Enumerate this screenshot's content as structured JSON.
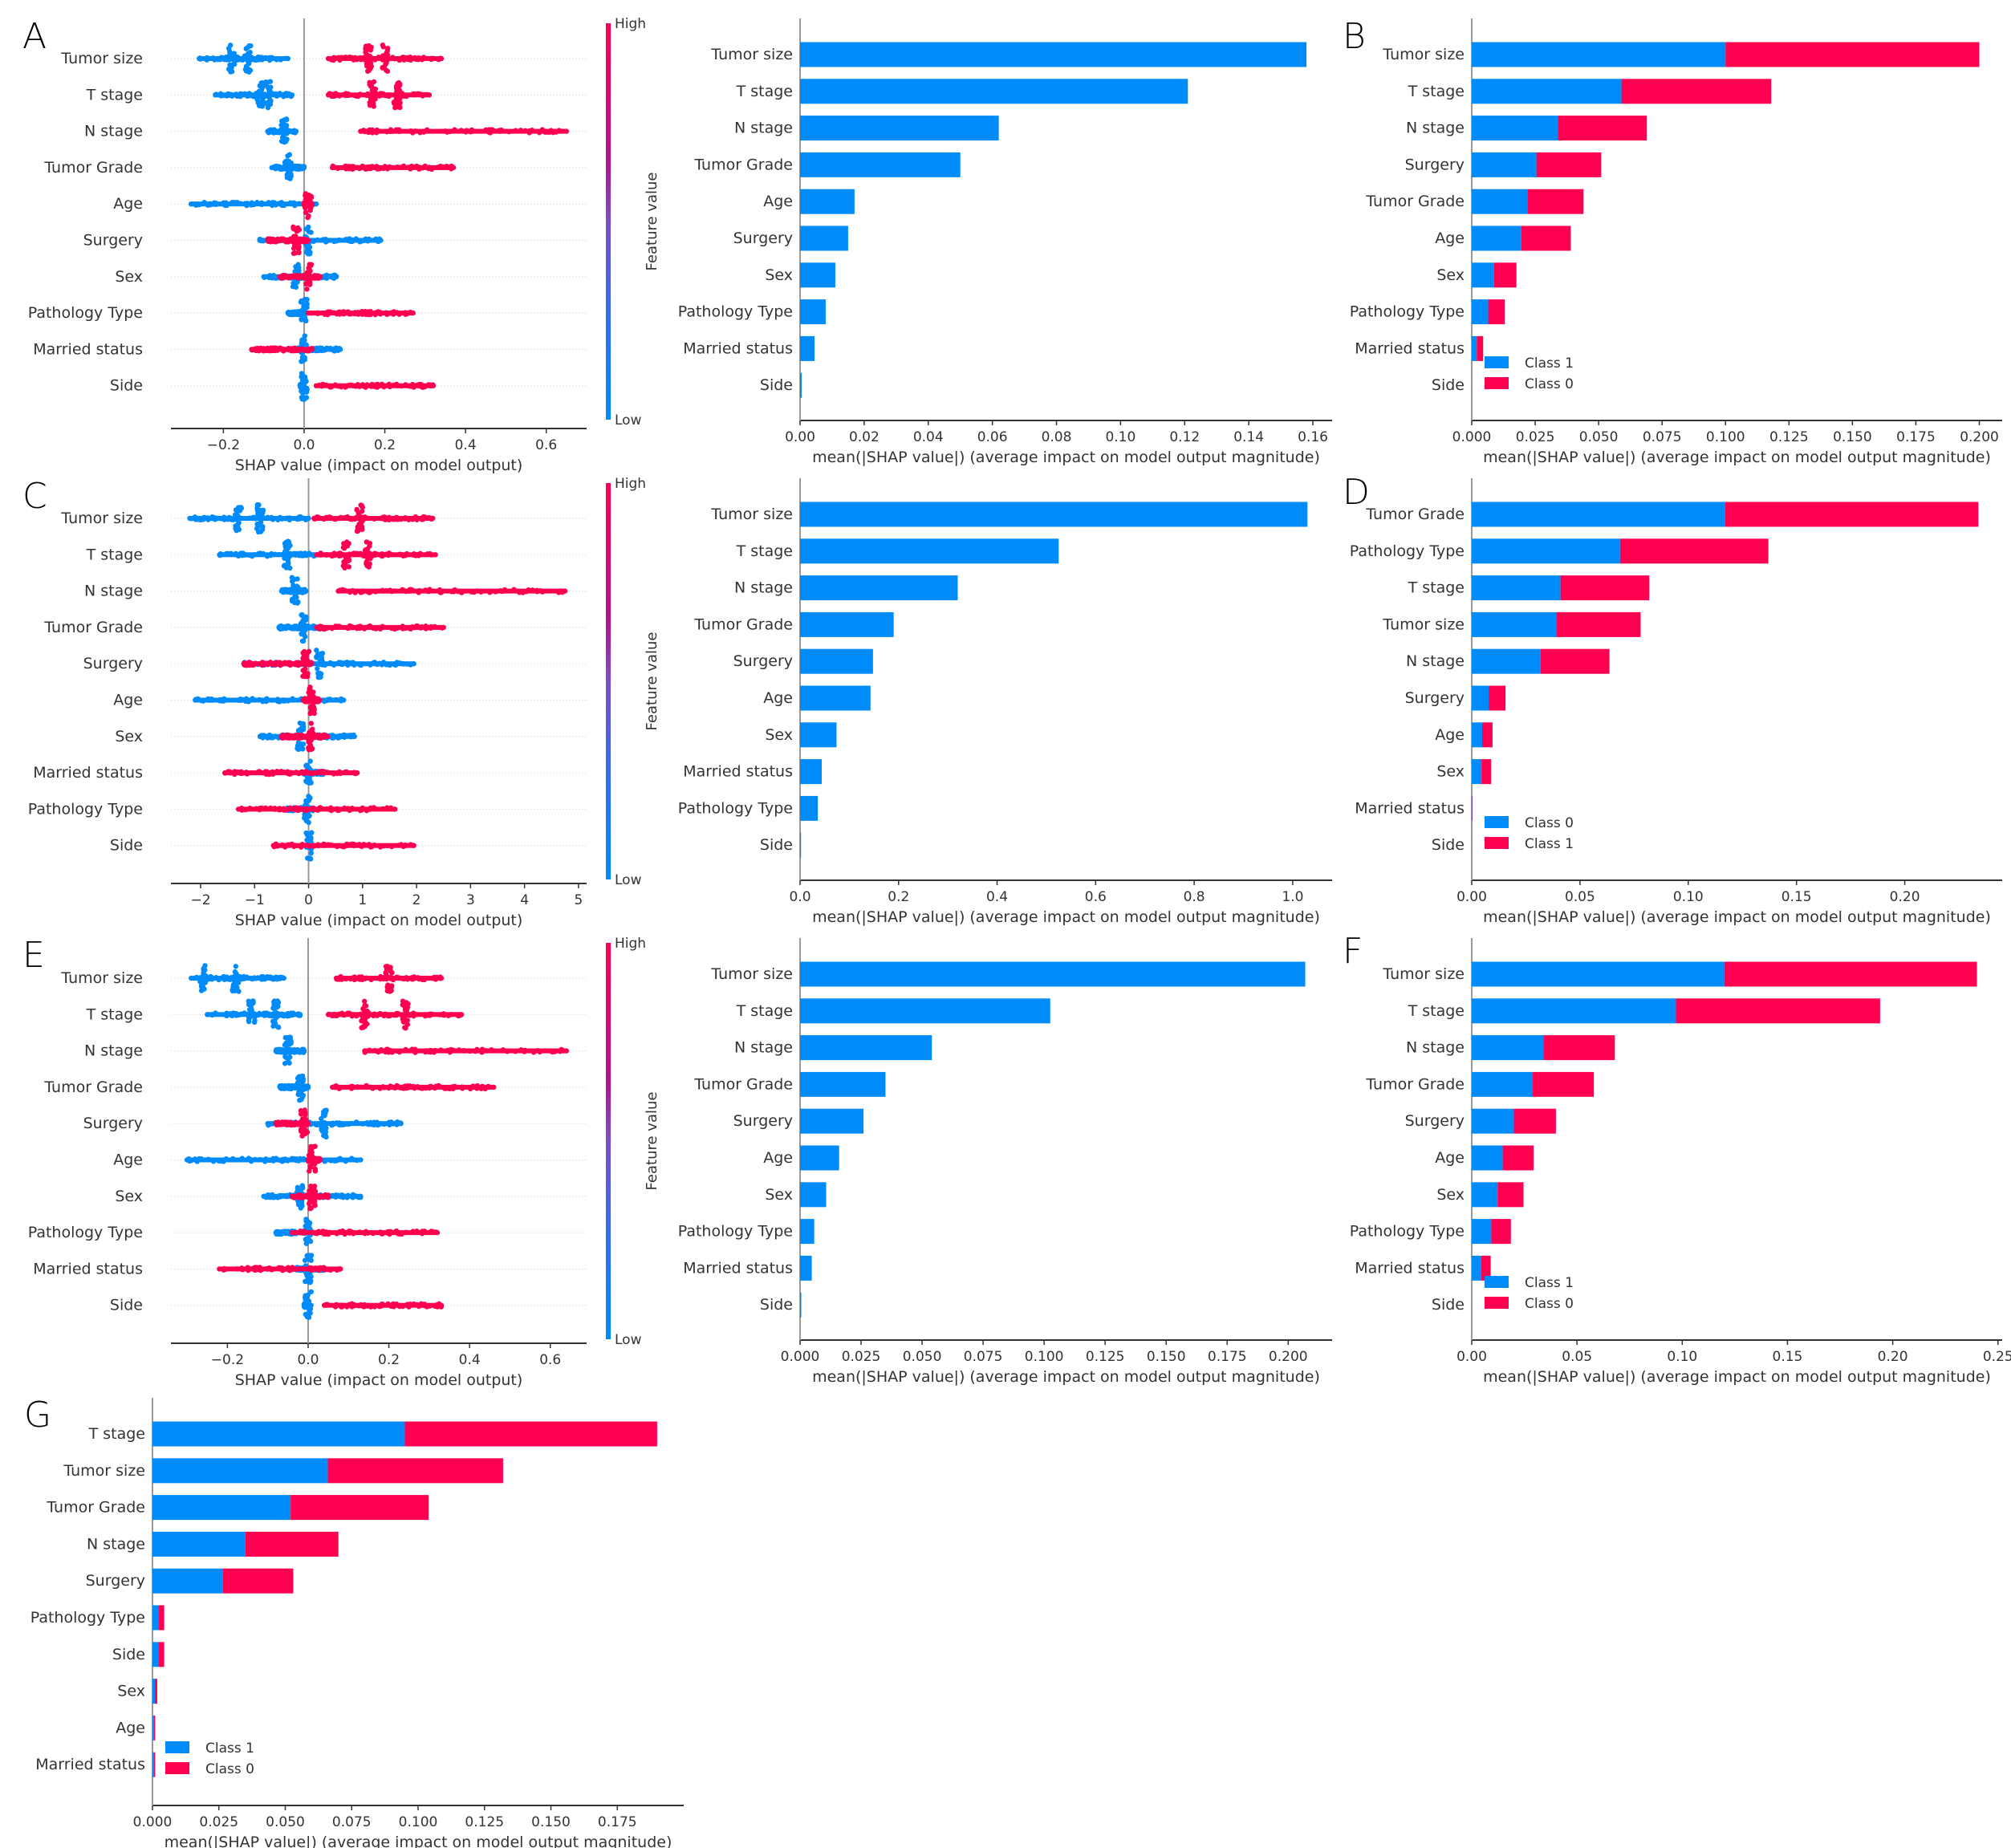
{
  "colors": {
    "blue": "#008bfb",
    "red": "#ff0051",
    "axis": "#333333",
    "zero_line": "#999999"
  },
  "chart_data": [
    {
      "id": "A",
      "type": "scatter",
      "kind": "beeswarm",
      "panel_label": "A",
      "xlabel": "SHAP value (impact on model output)",
      "xlim": [
        -0.33,
        0.7
      ],
      "xticks": [
        -0.2,
        0.0,
        0.2,
        0.4,
        0.6
      ],
      "xtick_labels": [
        "−0.2",
        "0.0",
        "0.2",
        "0.4",
        "0.6"
      ],
      "colorbar": {
        "label": "Feature value",
        "high": "High",
        "low": "Low"
      },
      "features": [
        {
          "name": "Tumor size",
          "low": [
            -0.26,
            -0.04
          ],
          "low_peaks": [
            -0.18,
            -0.14
          ],
          "high": [
            0.06,
            0.34
          ],
          "high_peaks": [
            0.16,
            0.2
          ]
        },
        {
          "name": "T stage",
          "low": [
            -0.22,
            -0.03
          ],
          "low_peaks": [
            -0.11,
            -0.09
          ],
          "high": [
            0.06,
            0.31
          ],
          "high_peaks": [
            0.17,
            0.23
          ]
        },
        {
          "name": "N stage",
          "low": [
            -0.09,
            -0.02
          ],
          "low_peaks": [
            -0.05
          ],
          "high": [
            0.14,
            0.65
          ],
          "high_peaks": []
        },
        {
          "name": "Tumor Grade",
          "low": [
            -0.08,
            0.0
          ],
          "low_peaks": [
            -0.04
          ],
          "high": [
            0.07,
            0.37
          ],
          "high_peaks": []
        },
        {
          "name": "Age",
          "low": [
            -0.28,
            0.03
          ],
          "low_peaks": [],
          "high": [
            0.0,
            0.02
          ],
          "high_peaks": [
            0.01
          ]
        },
        {
          "name": "Surgery",
          "low": [
            -0.11,
            0.19
          ],
          "low_peaks": [
            0.01
          ],
          "high": [
            -0.09,
            0.01
          ],
          "high_peaks": [
            -0.02
          ]
        },
        {
          "name": "Sex",
          "low": [
            -0.1,
            0.08
          ],
          "low_peaks": [
            -0.02
          ],
          "high": [
            -0.06,
            0.04
          ],
          "high_peaks": [
            0.01
          ]
        },
        {
          "name": "Pathology Type",
          "low": [
            -0.04,
            0.0
          ],
          "low_peaks": [
            0.0
          ],
          "high": [
            0.01,
            0.27
          ],
          "high_peaks": []
        },
        {
          "name": "Married status",
          "low": [
            -0.02,
            0.09
          ],
          "low_peaks": [
            0.0
          ],
          "high": [
            -0.13,
            0.02
          ],
          "high_peaks": []
        },
        {
          "name": "Side",
          "low": [
            -0.01,
            0.0
          ],
          "low_peaks": [
            0.0
          ],
          "high": [
            0.03,
            0.32
          ],
          "high_peaks": []
        }
      ]
    },
    {
      "id": "A2",
      "type": "bar",
      "xlabel": "mean(|SHAP value|) (average impact on model output magnitude)",
      "xlim": [
        0,
        0.166
      ],
      "xticks": [
        0,
        0.02,
        0.04,
        0.06,
        0.08,
        0.1,
        0.12,
        0.14,
        0.16
      ],
      "xtick_labels": [
        "0.00",
        "0.02",
        "0.04",
        "0.06",
        "0.08",
        "0.10",
        "0.12",
        "0.14",
        "0.16"
      ],
      "categories": [
        "Tumor size",
        "T stage",
        "N stage",
        "Tumor Grade",
        "Age",
        "Surgery",
        "Sex",
        "Pathology Type",
        "Married status",
        "Side"
      ],
      "values": [
        0.158,
        0.121,
        0.062,
        0.05,
        0.017,
        0.015,
        0.011,
        0.008,
        0.0045,
        0.0005
      ]
    },
    {
      "id": "B",
      "type": "bar",
      "stacked": true,
      "panel_label": "B",
      "xlabel": "mean(|SHAP value|) (average impact on model output magnitude)",
      "xlim": [
        0,
        0.209
      ],
      "xticks": [
        0,
        0.025,
        0.05,
        0.075,
        0.1,
        0.125,
        0.15,
        0.175,
        0.2
      ],
      "xtick_labels": [
        "0.000",
        "0.025",
        "0.050",
        "0.075",
        "0.100",
        "0.125",
        "0.150",
        "0.175",
        "0.200"
      ],
      "categories": [
        "Tumor size",
        "T stage",
        "N stage",
        "Surgery",
        "Tumor Grade",
        "Age",
        "Sex",
        "Pathology Type",
        "Married status",
        "Side"
      ],
      "series": [
        {
          "name": "Class 1",
          "color": "blue",
          "values": [
            0.1,
            0.059,
            0.034,
            0.0255,
            0.022,
            0.0195,
            0.0088,
            0.0065,
            0.002,
            0.0
          ]
        },
        {
          "name": "Class 0",
          "color": "red",
          "values": [
            0.1,
            0.059,
            0.035,
            0.0255,
            0.022,
            0.0195,
            0.0088,
            0.0065,
            0.0025,
            0.0
          ]
        }
      ],
      "legend": {
        "placement": "lower-left",
        "entries": [
          "Class 1",
          "Class 0"
        ]
      }
    },
    {
      "id": "C",
      "type": "scatter",
      "kind": "beeswarm",
      "panel_label": "C",
      "xlabel": "SHAP value (impact on model output)",
      "xlim": [
        -2.55,
        5.15
      ],
      "xticks": [
        -2,
        -1,
        0,
        1,
        2,
        3,
        4,
        5
      ],
      "xtick_labels": [
        "−2",
        "−1",
        "0",
        "1",
        "2",
        "3",
        "4",
        "5"
      ],
      "colorbar": {
        "label": "Feature value",
        "high": "High",
        "low": "Low"
      },
      "features": [
        {
          "name": "Tumor size",
          "low": [
            -2.2,
            0.0
          ],
          "low_peaks": [
            -1.3,
            -0.9
          ],
          "high": [
            0.1,
            2.3
          ],
          "high_peaks": [
            0.95
          ]
        },
        {
          "name": "T stage",
          "low": [
            -1.65,
            0.1
          ],
          "low_peaks": [
            -0.4
          ],
          "high": [
            0.15,
            2.35
          ],
          "high_peaks": [
            0.7,
            1.1
          ]
        },
        {
          "name": "N stage",
          "low": [
            -0.5,
            -0.05
          ],
          "low_peaks": [
            -0.25
          ],
          "high": [
            0.55,
            4.75
          ],
          "high_peaks": []
        },
        {
          "name": "Tumor Grade",
          "low": [
            -0.55,
            0.2
          ],
          "low_peaks": [
            -0.1
          ],
          "high": [
            0.15,
            2.5
          ],
          "high_peaks": []
        },
        {
          "name": "Surgery",
          "low": [
            -1.2,
            1.95
          ],
          "low_peaks": [
            0.2
          ],
          "high": [
            -1.2,
            0.05
          ],
          "high_peaks": [
            -0.05
          ]
        },
        {
          "name": "Age",
          "low": [
            -2.1,
            0.65
          ],
          "low_peaks": [],
          "high": [
            -0.1,
            0.2
          ],
          "high_peaks": [
            0.05
          ]
        },
        {
          "name": "Sex",
          "low": [
            -0.9,
            0.85
          ],
          "low_peaks": [
            -0.15
          ],
          "high": [
            -0.5,
            0.35
          ],
          "high_peaks": [
            0.05
          ]
        },
        {
          "name": "Married status",
          "low": [
            -0.1,
            0.3
          ],
          "low_peaks": [
            0.0
          ],
          "high": [
            -1.55,
            0.9
          ],
          "high_peaks": []
        },
        {
          "name": "Pathology Type",
          "low": [
            -0.4,
            0.1
          ],
          "low_peaks": [
            -0.02
          ],
          "high": [
            -1.3,
            1.6
          ],
          "high_peaks": []
        },
        {
          "name": "Side",
          "low": [
            -0.03,
            0.0
          ],
          "low_peaks": [
            0.0
          ],
          "high": [
            -0.65,
            1.95
          ],
          "high_peaks": []
        }
      ]
    },
    {
      "id": "C2",
      "type": "bar",
      "xlabel": "mean(|SHAP value|) (average impact on model output magnitude)",
      "xlim": [
        0,
        1.08
      ],
      "xticks": [
        0,
        0.2,
        0.4,
        0.6,
        0.8,
        1.0
      ],
      "xtick_labels": [
        "0.0",
        "0.2",
        "0.4",
        "0.6",
        "0.8",
        "1.0"
      ],
      "categories": [
        "Tumor size",
        "T stage",
        "N stage",
        "Tumor Grade",
        "Surgery",
        "Age",
        "Sex",
        "Married status",
        "Pathology Type",
        "Side"
      ],
      "values": [
        1.03,
        0.525,
        0.32,
        0.19,
        0.148,
        0.143,
        0.074,
        0.044,
        0.036,
        0.002
      ]
    },
    {
      "id": "D",
      "type": "bar",
      "stacked": true,
      "panel_label": "D",
      "xlabel": "mean(|SHAP value|) (average impact on model output magnitude)",
      "xlim": [
        0,
        0.245
      ],
      "xticks": [
        0,
        0.05,
        0.1,
        0.15,
        0.2
      ],
      "xtick_labels": [
        "0.00",
        "0.05",
        "0.10",
        "0.15",
        "0.20"
      ],
      "categories": [
        "Tumor Grade",
        "Pathology Type",
        "T stage",
        "Tumor size",
        "N stage",
        "Surgery",
        "Age",
        "Sex",
        "Married status",
        "Side"
      ],
      "series": [
        {
          "name": "Class 0",
          "color": "blue",
          "values": [
            0.117,
            0.0685,
            0.041,
            0.039,
            0.0318,
            0.0078,
            0.0048,
            0.0045,
            0.0002,
            0.0
          ]
        },
        {
          "name": "Class 1",
          "color": "red",
          "values": [
            0.117,
            0.0685,
            0.041,
            0.039,
            0.0318,
            0.0078,
            0.0048,
            0.0045,
            0.0002,
            0.0
          ]
        }
      ],
      "legend": {
        "placement": "lower-left",
        "entries": [
          "Class 0",
          "Class 1"
        ]
      }
    },
    {
      "id": "E",
      "type": "scatter",
      "kind": "beeswarm",
      "panel_label": "E",
      "xlabel": "SHAP value (impact on model output)",
      "xlim": [
        -0.34,
        0.69
      ],
      "xticks": [
        -0.2,
        0.0,
        0.2,
        0.4,
        0.6
      ],
      "xtick_labels": [
        "−0.2",
        "0.0",
        "0.2",
        "0.4",
        "0.6"
      ],
      "colorbar": {
        "label": "Feature value",
        "high": "High",
        "low": "Low"
      },
      "features": [
        {
          "name": "Tumor size",
          "low": [
            -0.29,
            -0.06
          ],
          "low_peaks": [
            -0.26,
            -0.18
          ],
          "high": [
            0.07,
            0.33
          ],
          "high_peaks": [
            0.2
          ]
        },
        {
          "name": "T stage",
          "low": [
            -0.25,
            -0.02
          ],
          "low_peaks": [
            -0.14,
            -0.08
          ],
          "high": [
            0.05,
            0.38
          ],
          "high_peaks": [
            0.14,
            0.24
          ]
        },
        {
          "name": "N stage",
          "low": [
            -0.08,
            -0.01
          ],
          "low_peaks": [
            -0.05
          ],
          "high": [
            0.14,
            0.64
          ],
          "high_peaks": []
        },
        {
          "name": "Tumor Grade",
          "low": [
            -0.07,
            0.0
          ],
          "low_peaks": [
            -0.02
          ],
          "high": [
            0.06,
            0.46
          ],
          "high_peaks": []
        },
        {
          "name": "Surgery",
          "low": [
            -0.1,
            0.23
          ],
          "low_peaks": [
            0.04
          ],
          "high": [
            -0.08,
            0.0
          ],
          "high_peaks": [
            -0.01
          ]
        },
        {
          "name": "Age",
          "low": [
            -0.3,
            0.13
          ],
          "low_peaks": [],
          "high": [
            0.0,
            0.03
          ],
          "high_peaks": [
            0.01
          ]
        },
        {
          "name": "Sex",
          "low": [
            -0.11,
            0.13
          ],
          "low_peaks": [
            -0.02
          ],
          "high": [
            -0.04,
            0.05
          ],
          "high_peaks": [
            0.01
          ]
        },
        {
          "name": "Pathology Type",
          "low": [
            -0.08,
            0.0
          ],
          "low_peaks": [
            0.0
          ],
          "high": [
            -0.04,
            0.32
          ],
          "high_peaks": []
        },
        {
          "name": "Married status",
          "low": [
            -0.03,
            0.04
          ],
          "low_peaks": [
            0.0
          ],
          "high": [
            -0.22,
            0.08
          ],
          "high_peaks": []
        },
        {
          "name": "Side",
          "low": [
            -0.01,
            0.0
          ],
          "low_peaks": [
            0.0
          ],
          "high": [
            0.04,
            0.33
          ],
          "high_peaks": []
        }
      ]
    },
    {
      "id": "E2",
      "type": "bar",
      "xlabel": "mean(|SHAP value|) (average impact on model output magnitude)",
      "xlim": [
        0,
        0.218
      ],
      "xticks": [
        0,
        0.025,
        0.05,
        0.075,
        0.1,
        0.125,
        0.15,
        0.175,
        0.2
      ],
      "xtick_labels": [
        "0.000",
        "0.025",
        "0.050",
        "0.075",
        "0.100",
        "0.125",
        "0.150",
        "0.175",
        "0.200"
      ],
      "categories": [
        "Tumor size",
        "T stage",
        "N stage",
        "Tumor Grade",
        "Surgery",
        "Age",
        "Sex",
        "Pathology Type",
        "Married status",
        "Side"
      ],
      "values": [
        0.207,
        0.1025,
        0.054,
        0.035,
        0.026,
        0.016,
        0.0107,
        0.0058,
        0.0048,
        0.0005
      ]
    },
    {
      "id": "F",
      "type": "bar",
      "stacked": true,
      "panel_label": "F",
      "xlabel": "mean(|SHAP value|) (average impact on model output magnitude)",
      "xlim": [
        0,
        0.252
      ],
      "xticks": [
        0,
        0.05,
        0.1,
        0.15,
        0.2,
        0.25
      ],
      "xtick_labels": [
        "0.00",
        "0.05",
        "0.10",
        "0.15",
        "0.20",
        "0.25"
      ],
      "categories": [
        "Tumor size",
        "T stage",
        "N stage",
        "Tumor Grade",
        "Surgery",
        "Age",
        "Sex",
        "Pathology Type",
        "Married status",
        "Side"
      ],
      "series": [
        {
          "name": "Class 1",
          "color": "blue",
          "values": [
            0.12,
            0.097,
            0.034,
            0.029,
            0.02,
            0.0147,
            0.0123,
            0.0093,
            0.0045,
            0.0
          ]
        },
        {
          "name": "Class 0",
          "color": "red",
          "values": [
            0.12,
            0.097,
            0.034,
            0.029,
            0.02,
            0.0147,
            0.0123,
            0.0093,
            0.0045,
            0.0
          ]
        }
      ],
      "legend": {
        "placement": "lower-left",
        "entries": [
          "Class 1",
          "Class 0"
        ]
      }
    },
    {
      "id": "G",
      "type": "bar",
      "stacked": true,
      "panel_label": "G",
      "xlabel": "mean(|SHAP value|) (average impact on model output magnitude)",
      "xlim": [
        0,
        0.2
      ],
      "xticks": [
        0,
        0.025,
        0.05,
        0.075,
        0.1,
        0.125,
        0.15,
        0.175
      ],
      "xtick_labels": [
        "0.000",
        "0.025",
        "0.050",
        "0.075",
        "0.100",
        "0.125",
        "0.150",
        "0.175"
      ],
      "categories": [
        "T stage",
        "Tumor size",
        "Tumor Grade",
        "N stage",
        "Surgery",
        "Pathology Type",
        "Side",
        "Sex",
        "Age",
        "Married status"
      ],
      "series": [
        {
          "name": "Class 1",
          "color": "blue",
          "values": [
            0.095,
            0.066,
            0.052,
            0.035,
            0.0265,
            0.0022,
            0.0022,
            0.0009,
            0.0005,
            0.0005
          ]
        },
        {
          "name": "Class 0",
          "color": "red",
          "values": [
            0.095,
            0.066,
            0.052,
            0.035,
            0.0265,
            0.0022,
            0.0022,
            0.0009,
            0.0005,
            0.0005
          ]
        }
      ],
      "legend": {
        "placement": "lower-left",
        "entries": [
          "Class 1",
          "Class 0"
        ]
      }
    }
  ]
}
